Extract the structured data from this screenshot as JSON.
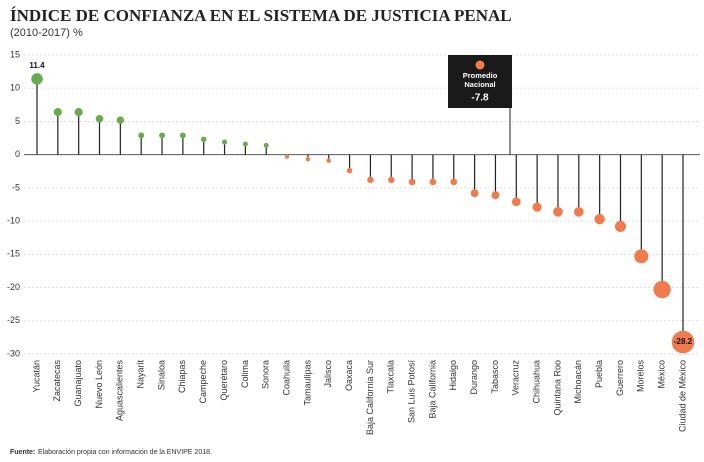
{
  "chart_data": {
    "type": "lollipop",
    "title": "ÍNDICE DE CONFIANZA EN EL SISTEMA DE JUSTICIA PENAL",
    "subtitle": "(2010-2017) %",
    "categories": [
      "Yucatán",
      "Zacatecas",
      "Guanajuato",
      "Nuevo León",
      "Aguascalientes",
      "Nayarit",
      "Sinaloa",
      "Chiapas",
      "Campeche",
      "Querétaro",
      "Colima",
      "Sonora",
      "Coahuila",
      "Tamaulipas",
      "Jalisco",
      "Oaxaca",
      "Baja California Sur",
      "Tlaxcala",
      "San Luis Potosí",
      "Baja California",
      "Hidalgo",
      "Durango",
      "Tabasco",
      "Veracruz",
      "Chihuahua",
      "Quintana Roo",
      "Michoacán",
      "Puebla",
      "Guerrero",
      "Morelos",
      "México",
      "Ciudad de México"
    ],
    "values": [
      11.4,
      6.4,
      6.4,
      5.4,
      5.2,
      2.9,
      2.9,
      2.9,
      2.3,
      1.9,
      1.6,
      1.4,
      -0.3,
      -0.7,
      -0.9,
      -2.4,
      -3.8,
      -3.8,
      -4.1,
      -4.1,
      -4.1,
      -5.8,
      -6.1,
      -7.1,
      -7.9,
      -8.6,
      -8.6,
      -9.7,
      -10.8,
      -15.3,
      -20.3,
      -28.2
    ],
    "value_labels": [
      "11.4",
      null,
      null,
      null,
      null,
      null,
      null,
      null,
      null,
      null,
      null,
      null,
      null,
      null,
      null,
      null,
      null,
      null,
      null,
      null,
      null,
      null,
      null,
      null,
      null,
      null,
      null,
      null,
      null,
      null,
      null,
      "-28.2"
    ],
    "positive_color": "#6aab4f",
    "negative_color": "#f07b4c",
    "ylim": [
      -30,
      15
    ],
    "yticks": [
      15,
      10,
      5,
      0,
      -5,
      -10,
      -15,
      -20,
      -25,
      -30
    ],
    "grid": true,
    "annotation": {
      "lines": [
        "Promedio",
        "Nacional"
      ],
      "value": -7.8
    },
    "source": {
      "label": "Fuente:",
      "text": "Elaboración propia con información de la ENVIPE 2018."
    }
  }
}
